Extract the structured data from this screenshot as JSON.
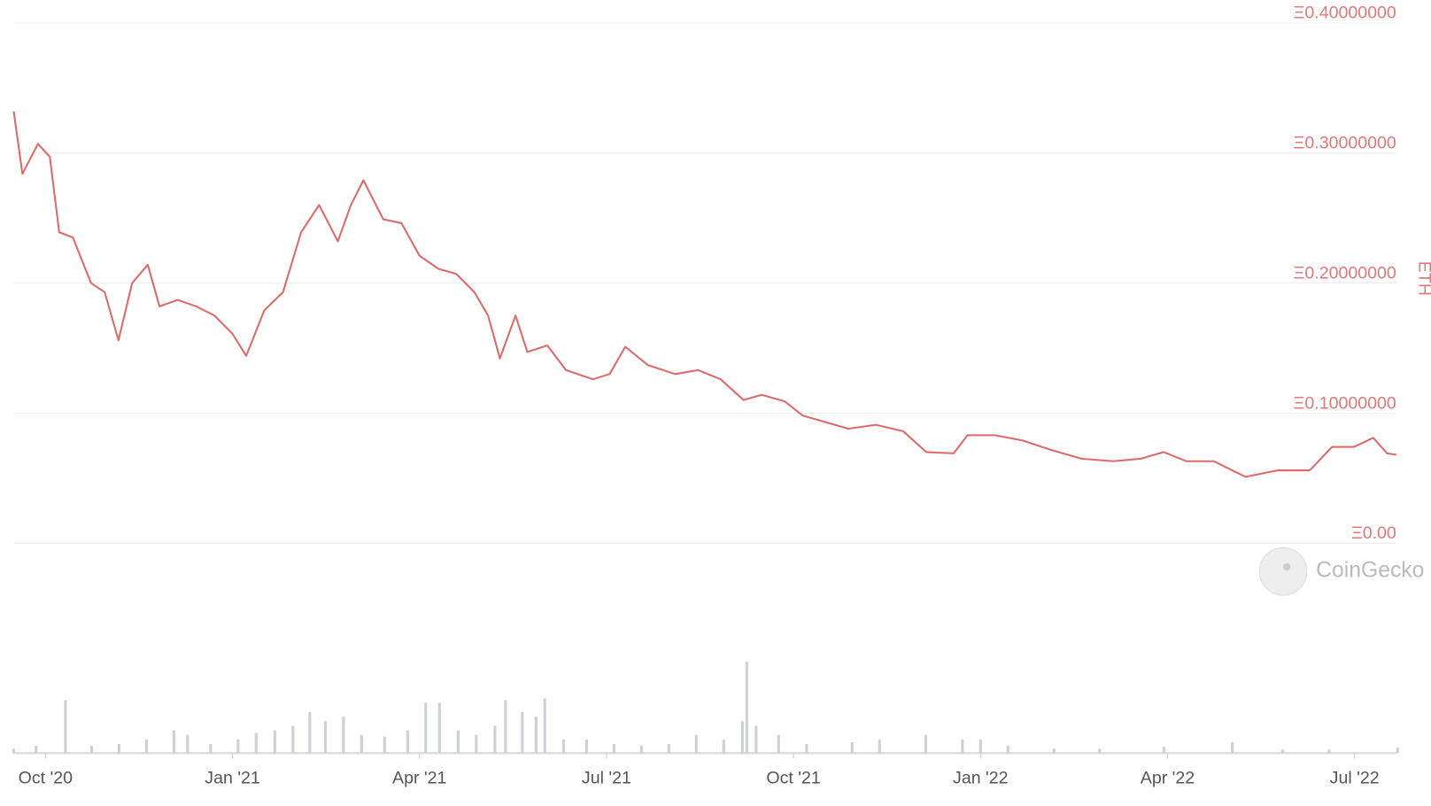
{
  "chart_data": {
    "type": "line",
    "y_axis_label": "ETH",
    "watermark": "CoinGecko",
    "grid": true,
    "color": "#dc6b6b",
    "xlim": [
      -0.51,
      21.67
    ],
    "xticks": [
      {
        "value": 0,
        "label": "Oct '20"
      },
      {
        "value": 3,
        "label": "Jan '21"
      },
      {
        "value": 6,
        "label": "Apr '21"
      },
      {
        "value": 9,
        "label": "Jul '21"
      },
      {
        "value": 12,
        "label": "Oct '21"
      },
      {
        "value": 15,
        "label": "Jan '22"
      },
      {
        "value": 18,
        "label": "Apr '22"
      },
      {
        "value": 21,
        "label": "Jul '22"
      }
    ],
    "ylim": [
      0,
      0.4
    ],
    "yticks": [
      {
        "value": 0,
        "label": "Ξ0.00"
      },
      {
        "value": 0.1,
        "label": "Ξ0.10000000"
      },
      {
        "value": 0.2,
        "label": "Ξ0.20000000"
      },
      {
        "value": 0.3,
        "label": "Ξ0.30000000"
      },
      {
        "value": 0.4,
        "label": "Ξ0.40000000"
      }
    ],
    "x": [
      -0.51,
      -0.37,
      -0.12,
      0.07,
      0.22,
      0.44,
      0.73,
      0.95,
      1.17,
      1.39,
      1.64,
      1.83,
      2.12,
      2.42,
      2.71,
      3.0,
      3.22,
      3.51,
      3.81,
      4.1,
      4.39,
      4.69,
      4.9,
      5.1,
      5.42,
      5.71,
      6.0,
      6.3,
      6.59,
      6.88,
      7.1,
      7.29,
      7.54,
      7.73,
      8.05,
      8.35,
      8.78,
      9.05,
      9.3,
      9.66,
      10.1,
      10.47,
      10.83,
      11.2,
      11.49,
      11.86,
      12.15,
      12.52,
      12.88,
      13.32,
      13.76,
      14.13,
      14.57,
      14.79,
      15.23,
      15.67,
      16.11,
      16.62,
      17.13,
      17.57,
      17.94,
      18.3,
      18.74,
      19.25,
      19.77,
      20.28,
      20.64,
      20.99,
      21.3,
      21.52,
      21.67
    ],
    "values": [
      0.325,
      0.277,
      0.3,
      0.29,
      0.232,
      0.228,
      0.193,
      0.186,
      0.149,
      0.193,
      0.207,
      0.175,
      0.18,
      0.175,
      0.168,
      0.154,
      0.137,
      0.172,
      0.186,
      0.232,
      0.253,
      0.225,
      0.253,
      0.272,
      0.242,
      0.239,
      0.214,
      0.204,
      0.2,
      0.186,
      0.168,
      0.135,
      0.168,
      0.14,
      0.145,
      0.126,
      0.119,
      0.123,
      0.144,
      0.13,
      0.123,
      0.126,
      0.119,
      0.103,
      0.107,
      0.102,
      0.091,
      0.086,
      0.081,
      0.084,
      0.079,
      0.063,
      0.062,
      0.076,
      0.076,
      0.072,
      0.065,
      0.058,
      0.056,
      0.058,
      0.063,
      0.056,
      0.056,
      0.044,
      0.049,
      0.049,
      0.067,
      0.067,
      0.074,
      0.062,
      0.061
    ],
    "volume": {
      "color": "#cdd0d5",
      "ylim": [
        0,
        100
      ],
      "x": [
        -0.51,
        -0.15,
        0.32,
        0.74,
        1.18,
        1.62,
        2.06,
        2.28,
        2.65,
        3.09,
        3.38,
        3.68,
        3.97,
        4.24,
        4.49,
        4.78,
        5.07,
        5.44,
        5.81,
        6.1,
        6.32,
        6.62,
        6.91,
        7.21,
        7.38,
        7.65,
        7.87,
        8.01,
        8.31,
        8.68,
        9.12,
        9.56,
        10.0,
        10.44,
        10.88,
        11.18,
        11.25,
        11.4,
        11.76,
        12.21,
        12.94,
        13.38,
        14.12,
        14.71,
        15.0,
        15.44,
        16.18,
        16.91,
        17.94,
        19.04,
        19.85,
        20.59,
        21.69
      ],
      "values": [
        5,
        8,
        58,
        8,
        10,
        15,
        25,
        20,
        10,
        15,
        22,
        25,
        30,
        45,
        35,
        40,
        20,
        18,
        25,
        55,
        55,
        25,
        20,
        30,
        58,
        45,
        40,
        60,
        15,
        15,
        10,
        8,
        10,
        20,
        15,
        35,
        100,
        30,
        20,
        10,
        12,
        15,
        20,
        15,
        15,
        8,
        5,
        5,
        7,
        12,
        4,
        4,
        6
      ]
    }
  }
}
